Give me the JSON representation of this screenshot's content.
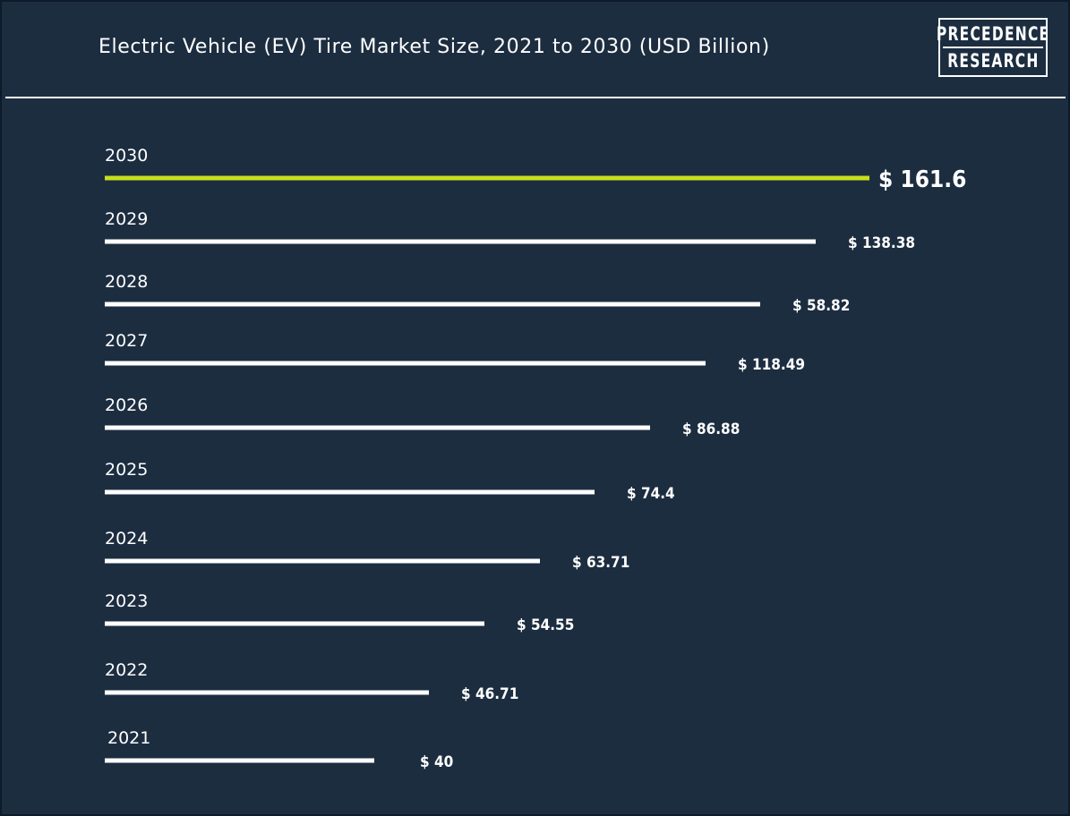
{
  "header": {
    "title": "Electric Vehicle (EV) Tire Market Size, 2021 to 2030 (USD Billion)",
    "logo_line1": "PRECEDENCE",
    "logo_line2": "RESEARCH"
  },
  "colors": {
    "background": "#1c2d40",
    "bar": "#ffffff",
    "highlight_bar": "#c6e01c",
    "text": "#ffffff"
  },
  "chart_data": {
    "type": "bar",
    "orientation": "horizontal",
    "categories": [
      "2030",
      "2029",
      "2028",
      "2027",
      "2026",
      "2025",
      "2024",
      "2023",
      "2022",
      "2021"
    ],
    "values": [
      161.6,
      138.38,
      58.82,
      118.49,
      86.88,
      74.4,
      63.71,
      54.55,
      46.71,
      40
    ],
    "value_labels": [
      "$ 161.6",
      "$ 138.38",
      "$ 58.82",
      "$ 118.49",
      "$ 86.88",
      "$ 74.4",
      "$ 63.71",
      "$ 54.55",
      "$ 46.71",
      "$ 40"
    ],
    "highlighted": "2030",
    "grid": false,
    "legend": "none"
  }
}
